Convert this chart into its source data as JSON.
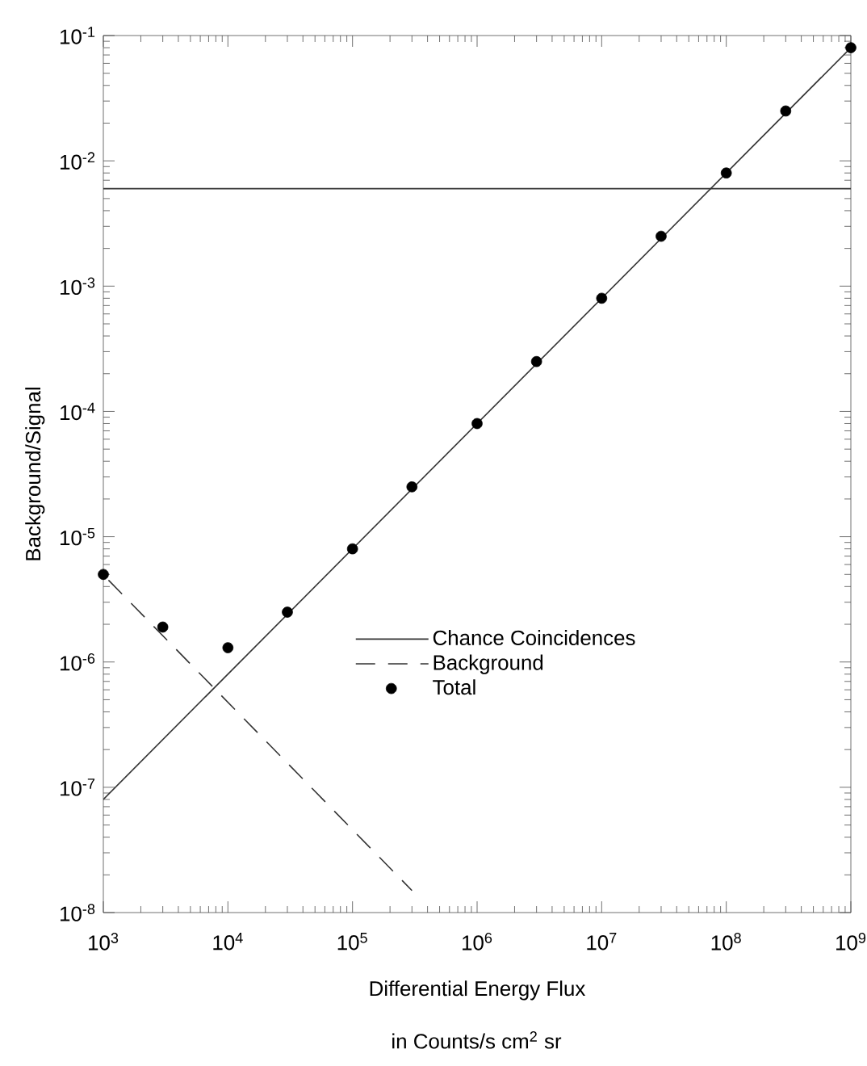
{
  "chart_data": {
    "type": "line",
    "log": "xy",
    "xlabel": "Differential Energy Flux",
    "ylabel": "Background/Signal",
    "annotations": [
      "in Counts/s cm$^{2}$ sr"
    ],
    "xlim": [
      1000,
      1000000000
    ],
    "ylim": [
      1e-08,
      0.1
    ],
    "xticks": [
      {
        "value": 1000,
        "label": "10$^{3}$"
      },
      {
        "value": 10000,
        "label": "10$^{4}$"
      },
      {
        "value": 100000,
        "label": "10$^{5}$"
      },
      {
        "value": 1000000,
        "label": "10$^{6}$"
      },
      {
        "value": 10000000,
        "label": "10$^{7}$"
      },
      {
        "value": 100000000,
        "label": "10$^{8}$"
      },
      {
        "value": 1000000000,
        "label": "10$^{9}$"
      }
    ],
    "yticks": [
      {
        "value": 1e-08,
        "label": "10$^{-8}$"
      },
      {
        "value": 1e-07,
        "label": "10$^{-7}$"
      },
      {
        "value": 1e-06,
        "label": "10$^{-6}$"
      },
      {
        "value": 1e-05,
        "label": "10$^{-5}$"
      },
      {
        "value": 0.0001,
        "label": "10$^{-4}$"
      },
      {
        "value": 0.001,
        "label": "10$^{-3}$"
      },
      {
        "value": 0.01,
        "label": "10$^{-2}$"
      },
      {
        "value": 0.1,
        "label": "10$^{-1}$"
      }
    ],
    "legend": "center",
    "ref_lines": [
      {
        "axis": "y",
        "value": 0.006
      }
    ],
    "series": [
      {
        "name": "Chance Coincidences",
        "line_style": "solid",
        "marker": "none",
        "color": "#333333",
        "x": [
          1000,
          1000000000
        ],
        "values": [
          8e-08,
          0.08
        ]
      },
      {
        "name": "Background",
        "line_style": "dashed",
        "marker": "none",
        "color": "#333333",
        "x": [
          1100,
          300000
        ],
        "values": [
          4.5e-06,
          1.5e-08
        ]
      },
      {
        "name": "Total",
        "type": "scatter",
        "marker": "circle",
        "color": "#000000",
        "x": [
          1000,
          3000,
          10000,
          30000,
          100000,
          300000,
          1000000,
          3000000,
          10000000,
          30000000,
          100000000,
          300000000,
          1000000000
        ],
        "values": [
          5e-06,
          1.9e-06,
          1.3e-06,
          2.5e-06,
          8e-06,
          2.5e-05,
          8e-05,
          0.00025,
          0.0008,
          0.0025,
          0.008,
          0.025,
          0.08
        ]
      }
    ]
  }
}
